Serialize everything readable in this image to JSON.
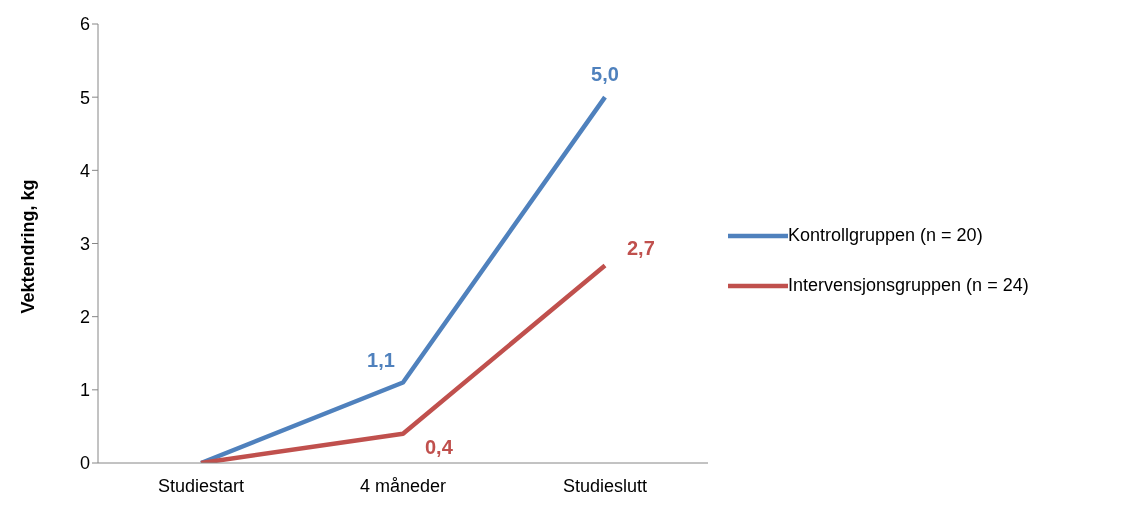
{
  "chart_data": {
    "type": "line",
    "ylabel": "Vektendring, kg",
    "categories": [
      "Studiestart",
      "4 måneder",
      "Studieslutt"
    ],
    "series": [
      {
        "name": "Kontrollgruppen (n = 20)",
        "color": "#4f81bd",
        "values": [
          0,
          1.1,
          5.0
        ],
        "value_labels": [
          null,
          "1,1",
          "5,0"
        ]
      },
      {
        "name": "Intervensjonsgruppen (n = 24)",
        "color": "#c0504d",
        "values": [
          0,
          0.4,
          2.7
        ],
        "value_labels": [
          null,
          "0,4",
          "2,7"
        ]
      }
    ],
    "ylim": [
      0,
      6
    ],
    "yticks": [
      0,
      1,
      2,
      3,
      4,
      5,
      6
    ],
    "legend": "right",
    "marker": "none",
    "line_style": "solid"
  }
}
